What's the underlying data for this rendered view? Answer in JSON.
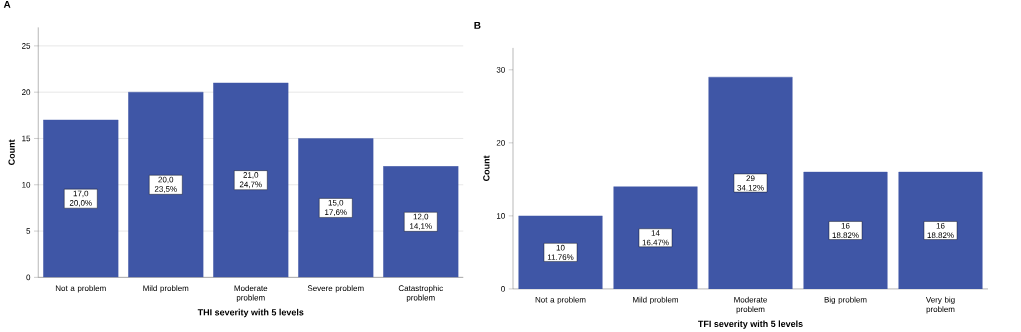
{
  "chart_data": [
    {
      "type": "bar",
      "title": "A",
      "xlabel": "THI severity with 5 levels",
      "ylabel": "Count",
      "categories": [
        "Not a problem",
        "Mild problem",
        "Moderate problem",
        "Severe problem",
        "Catastrophic problem"
      ],
      "values": [
        17,
        20,
        21,
        15,
        12
      ],
      "color": "#3f56a6",
      "value_labels": [
        "17,0 20,0%",
        "20,0 23,5%",
        "21,0 24,7%",
        "15,0 17,6%",
        "12,0 14,1%"
      ],
      "ylim": [
        0,
        27
      ],
      "yticks": [
        0,
        5,
        10,
        15,
        20,
        25
      ],
      "grid": "y"
    },
    {
      "type": "bar",
      "title": "B",
      "xlabel": "TFI severity with 5 levels",
      "ylabel": "Count",
      "categories": [
        "Not a problem",
        "Mild problem",
        "Moderate problem",
        "Big problem",
        "Very big problem"
      ],
      "values": [
        10,
        14,
        29,
        16,
        16
      ],
      "color": "#3f56a6",
      "value_labels": [
        "10 11.76%",
        "14 16.47%",
        "29 34.12%",
        "16 18.82%",
        "16 18.82%"
      ],
      "ylim": [
        0,
        33
      ],
      "yticks": [
        0,
        10,
        20,
        30
      ],
      "grid": false
    }
  ]
}
